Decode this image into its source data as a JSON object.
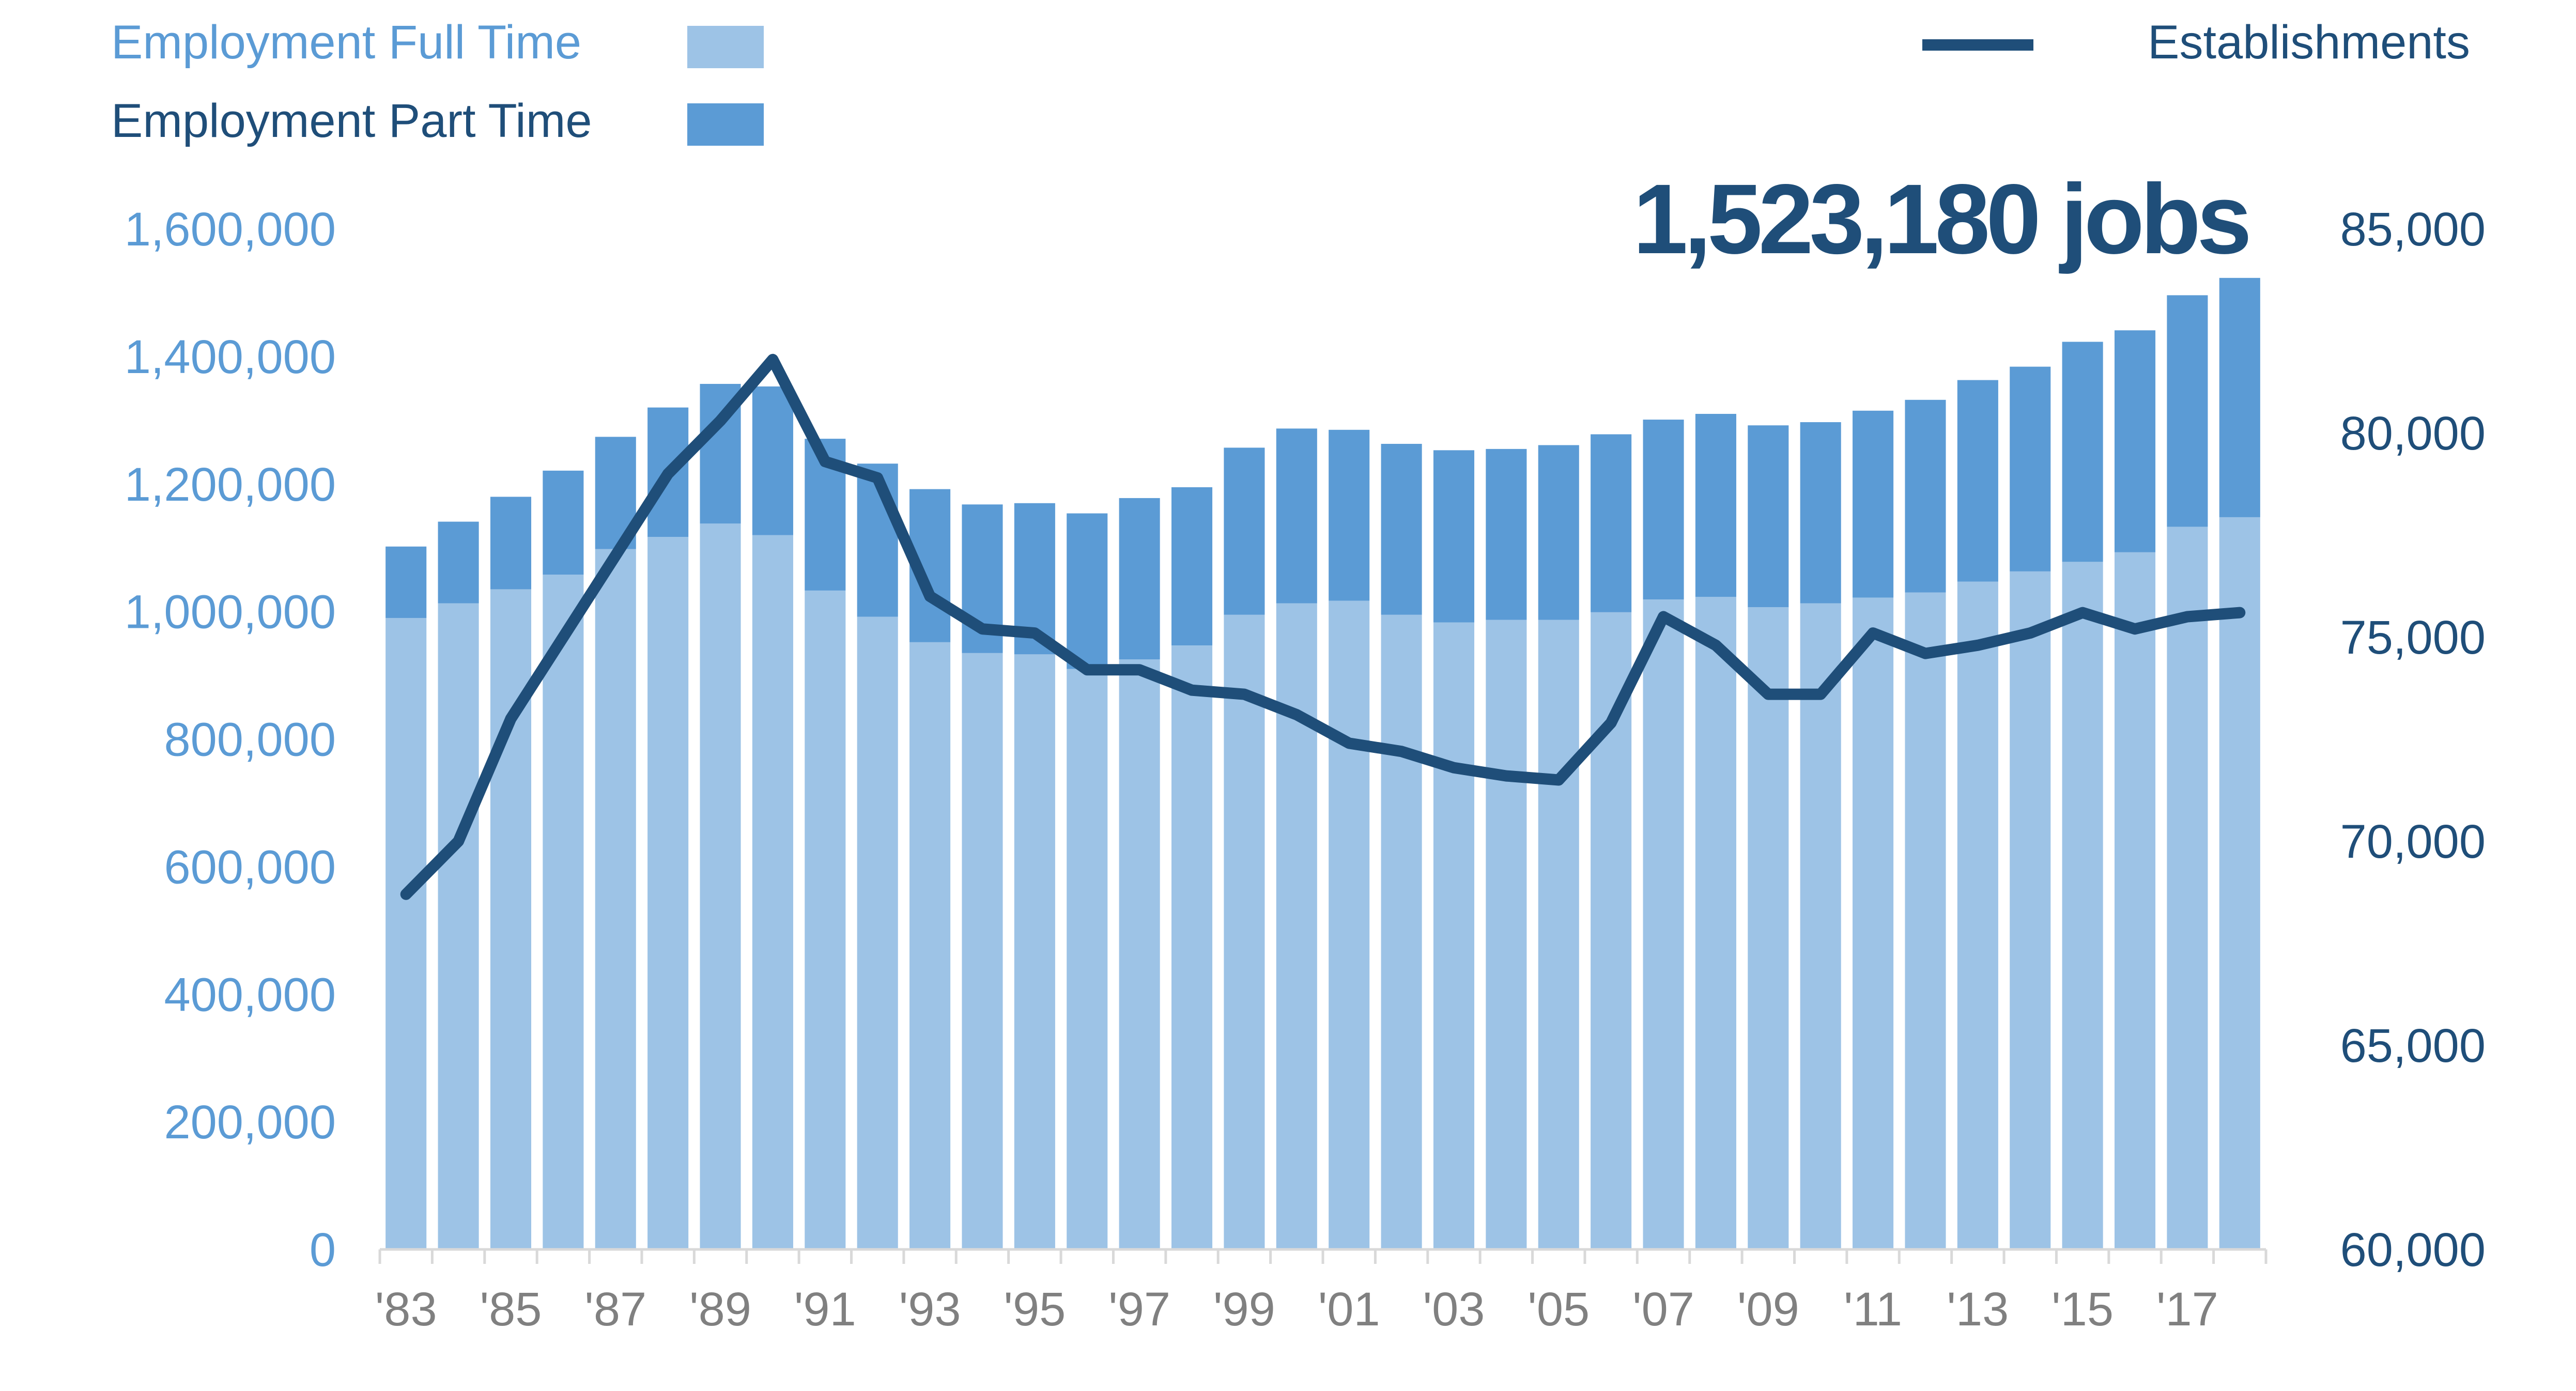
{
  "legend": {
    "full_time_label": "Employment Full Time",
    "part_time_label": "Employment Part Time",
    "establishments_label": "Establishments"
  },
  "callout": "1,523,180 jobs",
  "colors": {
    "full_time": "#9dc3e6",
    "part_time": "#5b9bd5",
    "establishments": "#1f4e79",
    "left_axis_text": "#5b9bd5",
    "right_axis_text": "#1f4e79",
    "x_axis_text": "#808080",
    "axis_line": "#d9d9d9"
  },
  "chart_data": {
    "type": "bar",
    "stacked": true,
    "years": [
      1983,
      1984,
      1985,
      1986,
      1987,
      1988,
      1989,
      1990,
      1991,
      1992,
      1993,
      1994,
      1995,
      1996,
      1997,
      1998,
      1999,
      2000,
      2001,
      2002,
      2003,
      2004,
      2005,
      2006,
      2007,
      2008,
      2009,
      2010,
      2011,
      2012,
      2013,
      2014,
      2015,
      2016,
      2017,
      2018
    ],
    "x_tick_labels": [
      "'83",
      "'85",
      "'87",
      "'89",
      "'91",
      "'93",
      "'95",
      "'97",
      "'99",
      "'01",
      "'03",
      "'05",
      "'07",
      "'09",
      "'11",
      "'13",
      "'15",
      "'17"
    ],
    "x_tick_years": [
      1983,
      1985,
      1987,
      1989,
      1991,
      1993,
      1995,
      1997,
      1999,
      2001,
      2003,
      2005,
      2007,
      2009,
      2011,
      2013,
      2015,
      2017
    ],
    "series": [
      {
        "name": "Employment Full Time",
        "axis": "left",
        "values": [
          990000,
          1013000,
          1035000,
          1058000,
          1098000,
          1117000,
          1138000,
          1120000,
          1033000,
          992000,
          952000,
          935000,
          933000,
          910000,
          925000,
          947000,
          995000,
          1013000,
          1017000,
          995000,
          983000,
          987000,
          987000,
          999000,
          1019000,
          1023000,
          1007000,
          1013000,
          1022000,
          1030000,
          1047000,
          1063000,
          1078000,
          1093000,
          1133000,
          1148000
        ]
      },
      {
        "name": "Employment Part Time",
        "axis": "left",
        "values": [
          112000,
          128000,
          145000,
          163000,
          176000,
          203000,
          219000,
          233000,
          238000,
          240000,
          240000,
          233000,
          237000,
          244000,
          253000,
          248000,
          262000,
          274000,
          268000,
          268000,
          270000,
          268000,
          274000,
          279000,
          282000,
          287000,
          285000,
          284000,
          293000,
          302000,
          316000,
          321000,
          345000,
          348000,
          363000,
          375180
        ]
      },
      {
        "name": "Establishments",
        "axis": "right",
        "type": "line",
        "values": [
          68700,
          70000,
          73000,
          75000,
          77000,
          79000,
          80300,
          81800,
          79300,
          78900,
          76000,
          75200,
          75100,
          74200,
          74200,
          73700,
          73600,
          73100,
          72400,
          72200,
          71800,
          71600,
          71500,
          72900,
          75500,
          74800,
          73600,
          73600,
          75100,
          74600,
          74800,
          75100,
          75600,
          75200,
          75500,
          75600
        ]
      }
    ],
    "y_left": {
      "ticks": [
        0,
        200000,
        400000,
        600000,
        800000,
        1000000,
        1200000,
        1400000,
        1600000
      ],
      "tick_labels": [
        "0",
        "200,000",
        "400,000",
        "600,000",
        "800,000",
        "1,000,000",
        "1,200,000",
        "1,400,000",
        "1,600,000"
      ],
      "ylim": [
        0,
        1600000
      ]
    },
    "y_right": {
      "ticks": [
        60000,
        65000,
        70000,
        75000,
        80000,
        85000
      ],
      "tick_labels": [
        "60,000",
        "65,000",
        "70,000",
        "75,000",
        "80,000",
        "85,000"
      ],
      "ylim": [
        60000,
        85000
      ]
    },
    "grid": false,
    "legend_position": "top"
  }
}
